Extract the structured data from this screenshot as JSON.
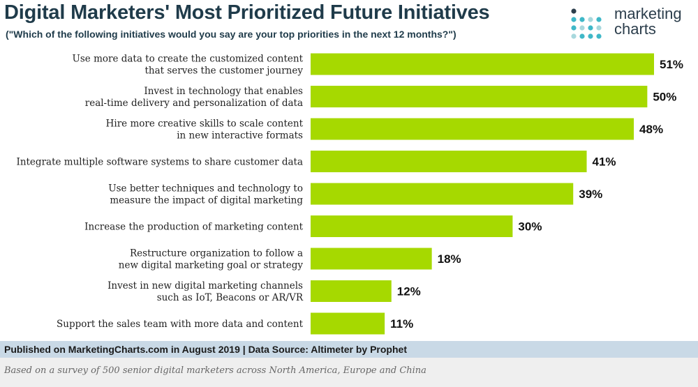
{
  "header": {
    "title": "Digital Marketers' Most Prioritized Future Initiatives",
    "subtitle": "(\"Which of the following initiatives would you say are your top priorities in the next 12 months?\")"
  },
  "logo": {
    "line1": "marketing",
    "line2": "charts",
    "colors": [
      "#2c3e4c",
      "#3fb8c8",
      "#a8d8dd"
    ]
  },
  "chart_data": {
    "type": "bar",
    "orientation": "horizontal",
    "title": "Digital Marketers' Most Prioritized Future Initiatives",
    "categories": [
      [
        "Use more data to create the customized content",
        "that serves the customer journey"
      ],
      [
        "Invest in technology that enables",
        "real-time delivery and personalization of data"
      ],
      [
        "Hire more creative skills to scale content",
        "in new interactive formats"
      ],
      [
        "Integrate multiple software systems to share customer data"
      ],
      [
        "Use better techniques and technology to",
        "measure the impact of digital marketing"
      ],
      [
        "Increase the production of marketing content"
      ],
      [
        "Restructure organization to follow a",
        "new digital marketing goal or strategy"
      ],
      [
        "Invest in new digital marketing channels",
        "such as IoT, Beacons or AR/VR"
      ],
      [
        "Support the sales team with more data and content"
      ]
    ],
    "values": [
      51,
      50,
      48,
      41,
      39,
      30,
      18,
      12,
      11
    ],
    "value_labels": [
      "51%",
      "50%",
      "48%",
      "41%",
      "39%",
      "30%",
      "18%",
      "12%",
      "11%"
    ],
    "unit": "%",
    "xlim": [
      0,
      51
    ],
    "bar_color": "#a6d900",
    "grid": false
  },
  "footer": {
    "source": "Published on MarketingCharts.com in August 2019 | Data Source: Altimeter by Prophet",
    "note": "Based on a survey of 500 senior digital marketers across North America, Europe and China"
  }
}
